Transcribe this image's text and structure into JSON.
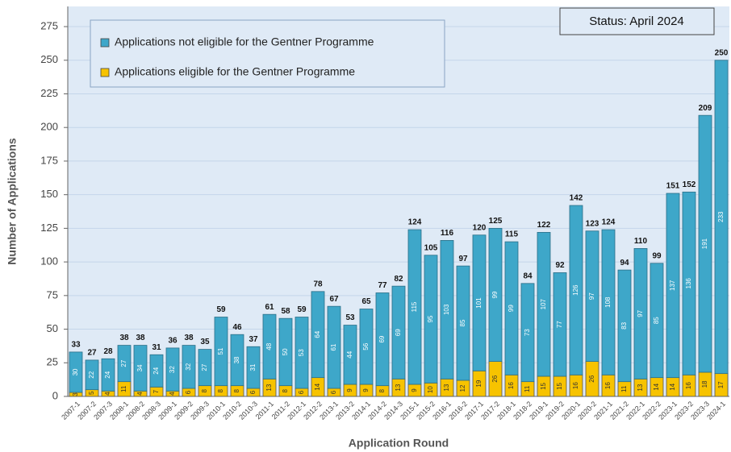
{
  "chart_data": {
    "type": "stacked_bar",
    "status": "Status: April 2024",
    "x_label": "Application Round",
    "y_label": "Number of Applications",
    "categories": [
      "2007-1",
      "2007-2",
      "2007-3",
      "2008-1",
      "2008-2",
      "2008-3",
      "2009-1",
      "2009-2",
      "2009-3",
      "2010-1",
      "2010-2",
      "2010-3",
      "2011-1",
      "2011-2",
      "2012-1",
      "2012-2",
      "2013-1",
      "2013-2",
      "2014-1",
      "2014-2",
      "2014-3",
      "2015-1",
      "2015-2",
      "2016-1",
      "2016-2",
      "2017-1",
      "2017-2",
      "2018-1",
      "2018-2",
      "2019-1",
      "2019-2",
      "2020-1",
      "2020-2",
      "2021-1",
      "2021-2",
      "2022-1",
      "2022-2",
      "2023-1",
      "2023-2",
      "2023-3",
      "2024-1"
    ],
    "series": [
      {
        "name": "Applications not eligible for the Gentner Programme",
        "color": "#3ea7c9",
        "values": [
          30,
          22,
          24,
          27,
          34,
          24,
          32,
          32,
          27,
          51,
          38,
          31,
          48,
          50,
          53,
          64,
          61,
          44,
          56,
          69,
          69,
          115,
          95,
          103,
          85,
          101,
          99,
          99,
          73,
          107,
          77,
          126,
          97,
          108,
          83,
          97,
          85,
          137,
          136,
          191,
          233
        ]
      },
      {
        "name": "Applications eligible for the Gentner Programme",
        "color": "#f7c300",
        "values": [
          3,
          5,
          4,
          11,
          4,
          7,
          4,
          6,
          8,
          8,
          8,
          6,
          13,
          8,
          6,
          14,
          6,
          9,
          9,
          8,
          13,
          9,
          10,
          13,
          12,
          19,
          26,
          16,
          11,
          15,
          15,
          16,
          26,
          16,
          11,
          13,
          14,
          14,
          16,
          18,
          17
        ]
      }
    ],
    "totals": [
      33,
      27,
      28,
      38,
      38,
      31,
      36,
      38,
      35,
      59,
      46,
      37,
      61,
      58,
      59,
      78,
      67,
      53,
      65,
      77,
      82,
      124,
      105,
      116,
      97,
      120,
      125,
      115,
      84,
      122,
      92,
      142,
      123,
      124,
      94,
      110,
      99,
      151,
      152,
      209,
      250
    ],
    "ylim": [
      0,
      290
    ],
    "yticks": [
      0,
      25,
      50,
      75,
      100,
      125,
      150,
      175,
      200,
      225,
      250,
      275
    ],
    "grid": true
  }
}
